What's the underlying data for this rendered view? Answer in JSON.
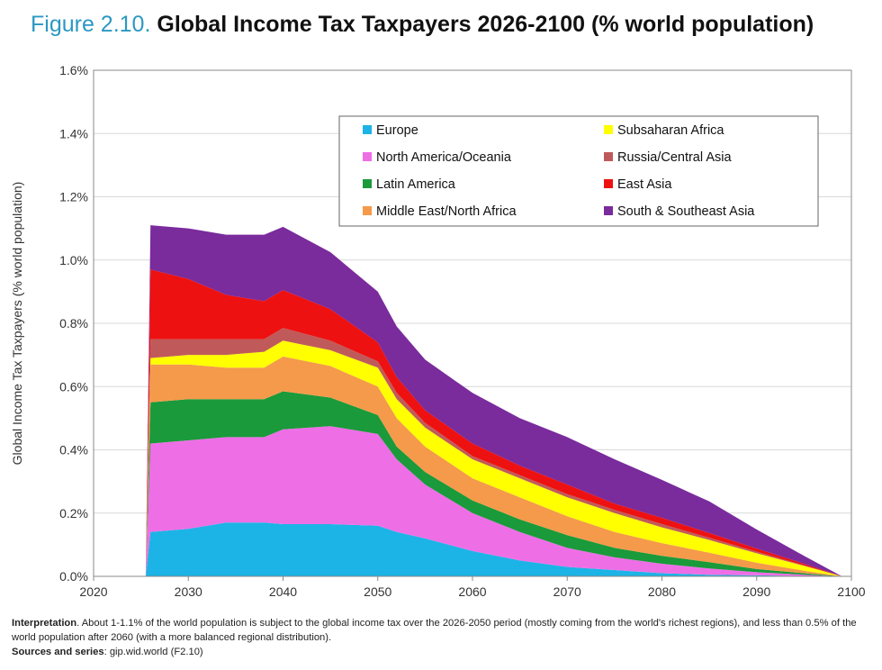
{
  "header": {
    "figure_label": "Figure 2.10.",
    "title": "Global Income Tax Taxpayers 2026-2100 (% world population)"
  },
  "note": {
    "interpretation_label": "Interpretation",
    "interpretation_text": ". About 1-1.1% of the world population is subject to the global income tax over the 2026-2050 period (mostly coming from the world's richest regions), and less than 0.5% of the world population after 2060 (with a more balanced regional distribution).",
    "sources_label": "Sources and series",
    "sources_text": ": gip.wid.world (F2.10)"
  },
  "colors": {
    "Europe": "#1cb4e6",
    "North America/Oceania": "#ee6ee6",
    "Latin America": "#1a9a3a",
    "Middle East/North Africa": "#f49a4a",
    "Subsaharan Africa": "#ffff00",
    "Russia/Central Asia": "#c05a5a",
    "East Asia": "#ee1111",
    "South & Southeast Asia": "#7a2b9c"
  },
  "chart_data": {
    "type": "area",
    "stacked": true,
    "title": "Global Income Tax Taxpayers 2026-2100 (% world population)",
    "ylabel": "Global Income Tax Taxpayers (% world population)",
    "xlabel": "",
    "xlim": [
      2020,
      2100
    ],
    "ylim": [
      0,
      1.6
    ],
    "x_ticks": [
      2020,
      2030,
      2040,
      2050,
      2060,
      2070,
      2080,
      2090,
      2100
    ],
    "y_ticks": [
      "0.0%",
      "0.2%",
      "0.4%",
      "0.6%",
      "0.8%",
      "1.0%",
      "1.2%",
      "1.4%",
      "1.6%"
    ],
    "y_tick_values": [
      0,
      0.2,
      0.4,
      0.6,
      0.8,
      1.0,
      1.2,
      1.4,
      1.6
    ],
    "grid": "horizontal",
    "legend_position": "top-right",
    "legend_order": [
      "Europe",
      "North America/Oceania",
      "Latin America",
      "Middle East/North Africa",
      "Subsaharan Africa",
      "Russia/Central Asia",
      "East Asia",
      "South & Southeast Asia"
    ],
    "x": [
      2025.5,
      2026,
      2030,
      2034,
      2038,
      2040,
      2045,
      2050,
      2052,
      2055,
      2060,
      2065,
      2070,
      2075,
      2080,
      2085,
      2090,
      2095,
      2099
    ],
    "series": [
      {
        "name": "Europe",
        "values": [
          0,
          0.14,
          0.15,
          0.17,
          0.17,
          0.165,
          0.165,
          0.16,
          0.14,
          0.12,
          0.08,
          0.05,
          0.03,
          0.02,
          0.01,
          0.005,
          0.003,
          0.001,
          0
        ]
      },
      {
        "name": "North America/Oceania",
        "values": [
          0,
          0.28,
          0.28,
          0.27,
          0.27,
          0.3,
          0.31,
          0.29,
          0.23,
          0.17,
          0.12,
          0.09,
          0.06,
          0.04,
          0.03,
          0.02,
          0.01,
          0.004,
          0
        ]
      },
      {
        "name": "Latin America",
        "values": [
          0,
          0.13,
          0.13,
          0.12,
          0.12,
          0.12,
          0.09,
          0.06,
          0.04,
          0.04,
          0.04,
          0.04,
          0.04,
          0.03,
          0.025,
          0.02,
          0.01,
          0.005,
          0
        ]
      },
      {
        "name": "Middle East/North Africa",
        "values": [
          0,
          0.12,
          0.11,
          0.1,
          0.1,
          0.11,
          0.1,
          0.09,
          0.09,
          0.08,
          0.07,
          0.07,
          0.06,
          0.05,
          0.04,
          0.03,
          0.02,
          0.008,
          0
        ]
      },
      {
        "name": "Subsaharan Africa",
        "values": [
          0,
          0.02,
          0.03,
          0.04,
          0.05,
          0.05,
          0.05,
          0.06,
          0.06,
          0.06,
          0.06,
          0.06,
          0.06,
          0.06,
          0.05,
          0.04,
          0.03,
          0.015,
          0
        ]
      },
      {
        "name": "Russia/Central Asia",
        "values": [
          0,
          0.06,
          0.05,
          0.05,
          0.04,
          0.04,
          0.03,
          0.02,
          0.02,
          0.015,
          0.01,
          0.01,
          0.01,
          0.01,
          0.01,
          0.007,
          0.005,
          0.002,
          0
        ]
      },
      {
        "name": "East Asia",
        "values": [
          0,
          0.22,
          0.19,
          0.14,
          0.12,
          0.12,
          0.1,
          0.06,
          0.05,
          0.04,
          0.04,
          0.03,
          0.03,
          0.02,
          0.02,
          0.015,
          0.01,
          0.005,
          0
        ]
      },
      {
        "name": "South & Southeast Asia",
        "values": [
          0,
          0.14,
          0.16,
          0.19,
          0.21,
          0.2,
          0.18,
          0.16,
          0.16,
          0.16,
          0.16,
          0.15,
          0.15,
          0.14,
          0.12,
          0.1,
          0.06,
          0.025,
          0
        ]
      }
    ]
  }
}
